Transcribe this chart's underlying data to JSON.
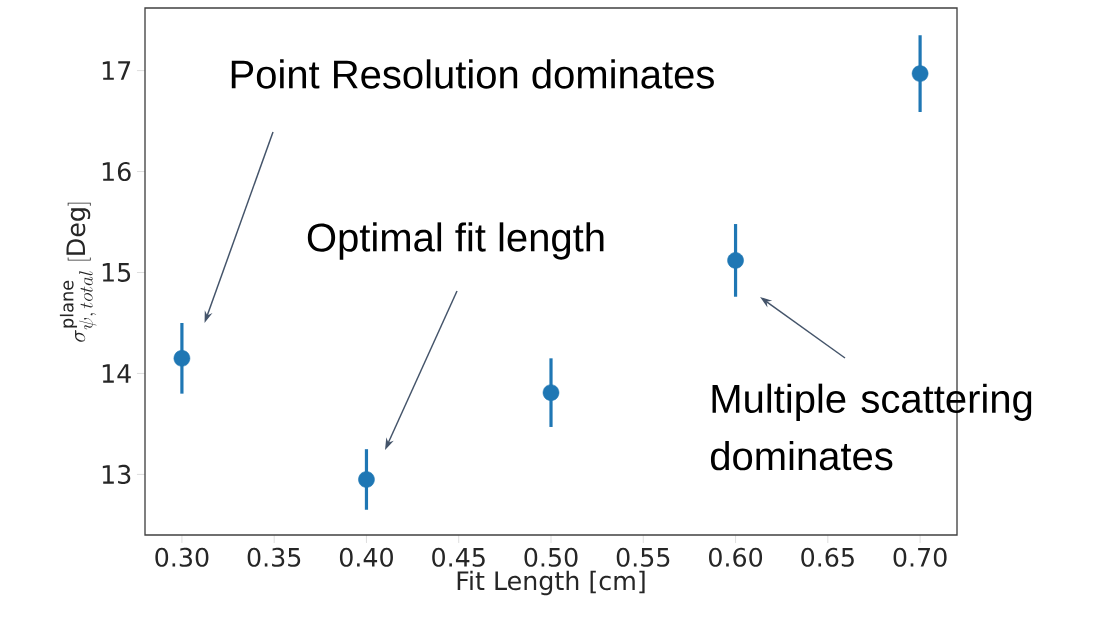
{
  "chart_data": {
    "type": "scatter",
    "xlabel": "Fit Length [cm]",
    "ylabel": "\\sigma^{\\mathrm{plane}}_{\\psi,\\,total}\\;\\mathrm{[Deg]}",
    "x": [
      0.3,
      0.4,
      0.5,
      0.6,
      0.7
    ],
    "values": [
      14.15,
      12.95,
      13.81,
      15.12,
      16.97
    ],
    "errors": [
      0.35,
      0.3,
      0.34,
      0.36,
      0.38
    ],
    "color": "#1f77b4",
    "marker": "circle",
    "xlim": [
      0.28,
      0.72
    ],
    "ylim": [
      12.4,
      17.62
    ],
    "xticks": [
      {
        "value": 0.3,
        "label": "0.30"
      },
      {
        "value": 0.35,
        "label": "0.35"
      },
      {
        "value": 0.4,
        "label": "0.40"
      },
      {
        "value": 0.45,
        "label": "0.45"
      },
      {
        "value": 0.5,
        "label": "0.50"
      },
      {
        "value": 0.55,
        "label": "0.55"
      },
      {
        "value": 0.6,
        "label": "0.60"
      },
      {
        "value": 0.65,
        "label": "0.65"
      },
      {
        "value": 0.7,
        "label": "0.70"
      }
    ],
    "yticks": [
      13,
      14,
      15,
      16,
      17
    ],
    "grid": false,
    "annotations": [
      "Point Resolution dominates",
      "Optimal fit length",
      "Multiple scattering dominates"
    ]
  }
}
